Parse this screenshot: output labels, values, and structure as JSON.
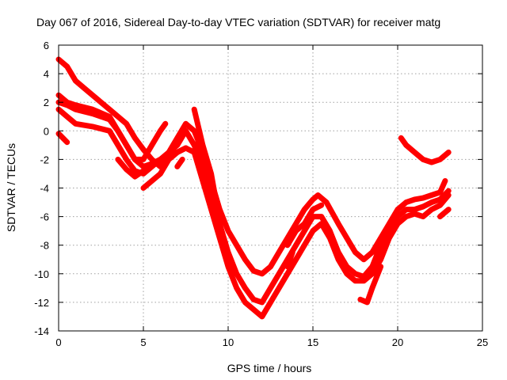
{
  "chart_data": {
    "type": "scatter",
    "title": "Day 067 of 2016, Sidereal Day-to-day VTEC variation (SDTVAR) for receiver matg",
    "xlabel": "GPS time / hours",
    "ylabel": "SDTVAR / TECUs",
    "xlim": [
      0,
      25
    ],
    "ylim": [
      -14,
      6
    ],
    "xticks": [
      0,
      5,
      10,
      15,
      20,
      25
    ],
    "yticks": [
      -14,
      -12,
      -10,
      -8,
      -6,
      -4,
      -2,
      0,
      2,
      4,
      6
    ],
    "grid": true,
    "legend": "none",
    "marker": "+",
    "color": "#ff0000",
    "series": [
      {
        "points": [
          [
            0,
            5.0
          ],
          [
            0.5,
            4.5
          ],
          [
            1,
            3.5
          ],
          [
            1.5,
            3.0
          ],
          [
            2,
            2.5
          ],
          [
            3,
            1.5
          ],
          [
            4,
            0.5
          ],
          [
            4.5,
            -0.5
          ],
          [
            5,
            -1.3
          ],
          [
            5.5,
            -2.0
          ],
          [
            6,
            -2.5
          ],
          [
            6.5,
            -1.5
          ],
          [
            7,
            -0.5
          ],
          [
            7.5,
            0.5
          ],
          [
            8,
            0.0
          ],
          [
            8.5,
            -1.5
          ],
          [
            9,
            -3.5
          ],
          [
            9.5,
            -5.5
          ],
          [
            10,
            -7.0
          ],
          [
            10.5,
            -8.0
          ],
          [
            11,
            -9.0
          ],
          [
            11.5,
            -9.8
          ],
          [
            12,
            -10.0
          ],
          [
            12.5,
            -9.5
          ],
          [
            13,
            -8.5
          ],
          [
            13.5,
            -7.5
          ],
          [
            14,
            -6.5
          ],
          [
            14.5,
            -5.5
          ],
          [
            15,
            -4.8
          ],
          [
            15.3,
            -4.5
          ],
          [
            15.8,
            -5.0
          ],
          [
            16.5,
            -6.5
          ],
          [
            17,
            -7.5
          ],
          [
            17.5,
            -8.5
          ],
          [
            18,
            -9.0
          ],
          [
            18.5,
            -8.5
          ],
          [
            19,
            -7.5
          ],
          [
            19.5,
            -6.5
          ],
          [
            20,
            -5.5
          ],
          [
            20.5,
            -5.0
          ],
          [
            21,
            -4.8
          ],
          [
            21.5,
            -4.7
          ],
          [
            22,
            -4.5
          ],
          [
            22.5,
            -4.3
          ],
          [
            22.8,
            -3.5
          ]
        ]
      },
      {
        "points": [
          [
            0,
            2.0
          ],
          [
            0.5,
            1.8
          ],
          [
            1,
            1.5
          ],
          [
            2,
            1.2
          ],
          [
            3,
            0.8
          ],
          [
            3.5,
            0.0
          ],
          [
            4,
            -1.0
          ],
          [
            4.5,
            -2.0
          ],
          [
            5,
            -2.5
          ],
          [
            5.5,
            -2.3
          ],
          [
            6,
            -2.0
          ],
          [
            6.5,
            -1.5
          ],
          [
            7,
            -1.0
          ],
          [
            7.5,
            0.0
          ],
          [
            8,
            -1.0
          ],
          [
            8.5,
            -2.5
          ],
          [
            9,
            -4.5
          ],
          [
            9.5,
            -6.5
          ],
          [
            10,
            -8.5
          ],
          [
            10.5,
            -10.0
          ],
          [
            11,
            -11.0
          ],
          [
            11.5,
            -11.8
          ],
          [
            12,
            -12.0
          ],
          [
            12.5,
            -11.0
          ],
          [
            13,
            -10.0
          ],
          [
            13.5,
            -9.0
          ],
          [
            14,
            -8.0
          ],
          [
            14.5,
            -7.0
          ],
          [
            15,
            -6.0
          ],
          [
            15.5,
            -6.0
          ],
          [
            16,
            -7.0
          ],
          [
            16.5,
            -8.5
          ],
          [
            17,
            -9.5
          ],
          [
            17.5,
            -10.0
          ],
          [
            18,
            -10.2
          ],
          [
            18.5,
            -9.5
          ],
          [
            19,
            -8.0
          ],
          [
            19.5,
            -7.0
          ],
          [
            20,
            -6.0
          ],
          [
            20.5,
            -5.5
          ],
          [
            21,
            -5.5
          ],
          [
            21.5,
            -5.3
          ],
          [
            22,
            -5.0
          ],
          [
            22.5,
            -4.8
          ],
          [
            23,
            -4.2
          ]
        ]
      },
      {
        "points": [
          [
            0,
            1.5
          ],
          [
            0.5,
            1.0
          ],
          [
            1,
            0.5
          ],
          [
            2,
            0.3
          ],
          [
            3,
            0.0
          ],
          [
            3.5,
            -1.0
          ],
          [
            4,
            -2.0
          ],
          [
            4.5,
            -2.8
          ],
          [
            5,
            -3.0
          ],
          [
            5.5,
            -2.5
          ],
          [
            6,
            -2.0
          ],
          [
            7,
            -1.5
          ],
          [
            7.5,
            -1.2
          ],
          [
            8,
            -1.5
          ],
          [
            8.5,
            -3.5
          ],
          [
            9,
            -5.5
          ],
          [
            9.5,
            -7.5
          ],
          [
            10,
            -9.5
          ],
          [
            10.5,
            -11.0
          ],
          [
            11,
            -12.0
          ],
          [
            11.5,
            -12.5
          ],
          [
            12,
            -13.0
          ],
          [
            12.5,
            -12.0
          ],
          [
            13,
            -11.0
          ],
          [
            13.5,
            -10.0
          ],
          [
            14,
            -9.0
          ],
          [
            14.5,
            -8.0
          ],
          [
            15,
            -7.0
          ],
          [
            15.5,
            -6.5
          ],
          [
            16,
            -7.5
          ],
          [
            16.5,
            -9.0
          ],
          [
            17,
            -10.0
          ],
          [
            17.5,
            -10.5
          ],
          [
            18,
            -10.5
          ],
          [
            18.5,
            -10.0
          ],
          [
            19,
            -9.0
          ],
          [
            19.5,
            -7.5
          ],
          [
            20,
            -6.5
          ],
          [
            20.5,
            -6.0
          ],
          [
            21,
            -5.8
          ],
          [
            21.5,
            -6.0
          ],
          [
            22,
            -5.5
          ],
          [
            22.5,
            -5.2
          ],
          [
            23,
            -4.5
          ]
        ]
      },
      {
        "points": [
          [
            0,
            2.5
          ],
          [
            0.5,
            2.0
          ],
          [
            1,
            1.8
          ],
          [
            2,
            1.5
          ],
          [
            3,
            1.0
          ],
          [
            3.5,
            0.0
          ],
          [
            4,
            -1.0
          ],
          [
            4.5,
            -2.0
          ],
          [
            5,
            -2.0
          ],
          [
            5.5,
            -1.0
          ],
          [
            6,
            0.0
          ],
          [
            6.3,
            0.5
          ]
        ]
      },
      {
        "points": [
          [
            3.5,
            -2.0
          ],
          [
            4,
            -2.7
          ],
          [
            4.5,
            -3.2
          ],
          [
            5,
            -2.8
          ]
        ]
      },
      {
        "points": [
          [
            5,
            -4.0
          ],
          [
            5.5,
            -3.5
          ],
          [
            6,
            -3.0
          ],
          [
            6.5,
            -2.0
          ],
          [
            7,
            -1.5
          ],
          [
            7.5,
            -1.2
          ]
        ]
      },
      {
        "points": [
          [
            0,
            -0.2
          ],
          [
            0.5,
            -0.8
          ]
        ]
      },
      {
        "points": [
          [
            7,
            -2.5
          ],
          [
            7.3,
            -2.0
          ]
        ]
      },
      {
        "points": [
          [
            8.2,
            -0.5
          ],
          [
            8.5,
            -2.5
          ],
          [
            9,
            -4.5
          ],
          [
            9.5,
            -6.5
          ],
          [
            9.8,
            -8.0
          ]
        ]
      },
      {
        "points": [
          [
            8,
            1.5
          ],
          [
            8.5,
            -1.0
          ],
          [
            9,
            -3.0
          ],
          [
            9.3,
            -5.0
          ]
        ]
      },
      {
        "points": [
          [
            20.2,
            -0.5
          ],
          [
            20.5,
            -1.0
          ],
          [
            21,
            -1.5
          ],
          [
            21.5,
            -2.0
          ],
          [
            22,
            -2.2
          ],
          [
            22.5,
            -2.0
          ],
          [
            23,
            -1.5
          ]
        ]
      },
      {
        "points": [
          [
            17.8,
            -11.8
          ],
          [
            18.2,
            -12.0
          ],
          [
            18.5,
            -11.0
          ],
          [
            19,
            -9.5
          ]
        ]
      },
      {
        "points": [
          [
            22.5,
            -6.0
          ],
          [
            23,
            -5.5
          ]
        ]
      },
      {
        "points": [
          [
            13.5,
            -8.0
          ],
          [
            14,
            -7.0
          ],
          [
            14.5,
            -6.5
          ],
          [
            15,
            -5.5
          ],
          [
            15.5,
            -5.2
          ]
        ]
      },
      {
        "points": [
          [
            13.5,
            -9.5
          ],
          [
            13.8,
            -8.5
          ]
        ]
      }
    ]
  }
}
